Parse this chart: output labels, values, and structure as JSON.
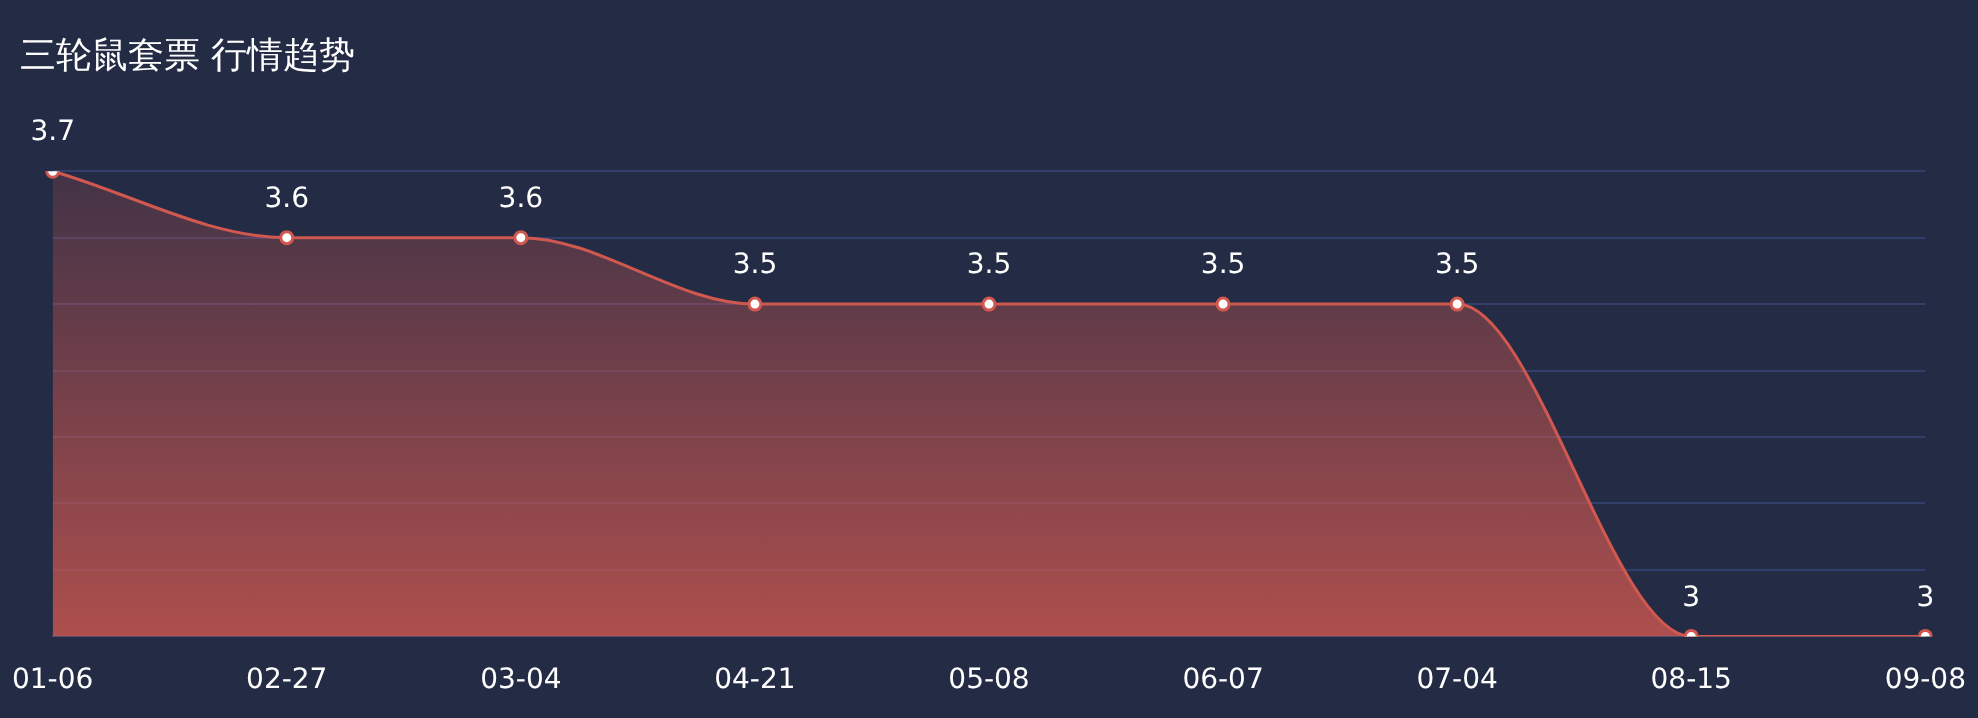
{
  "chart_data": {
    "type": "area",
    "title": "三轮鼠套票 行情趋势",
    "categories": [
      "01-06",
      "02-27",
      "03-04",
      "04-21",
      "05-08",
      "06-07",
      "07-04",
      "08-15",
      "09-08"
    ],
    "series": [
      {
        "color": "#d0584f",
        "values": [
          3.7,
          3.6,
          3.6,
          3.5,
          3.5,
          3.5,
          3.5,
          3,
          3
        ]
      }
    ],
    "ylim": [
      3,
      3.7
    ],
    "yticks": [
      {
        "value": 3,
        "label": null
      },
      {
        "value": 3.1,
        "label": null
      },
      {
        "value": 3.2,
        "label": null
      },
      {
        "value": 3.3,
        "label": null
      },
      {
        "value": 3.4,
        "label": null
      },
      {
        "value": 3.5,
        "label": null
      },
      {
        "value": 3.6,
        "label": null
      },
      {
        "value": 3.7,
        "label": null
      }
    ],
    "tick_labels": "x",
    "grid": "y",
    "legend": false,
    "marker": "circle",
    "data_labels": true
  }
}
